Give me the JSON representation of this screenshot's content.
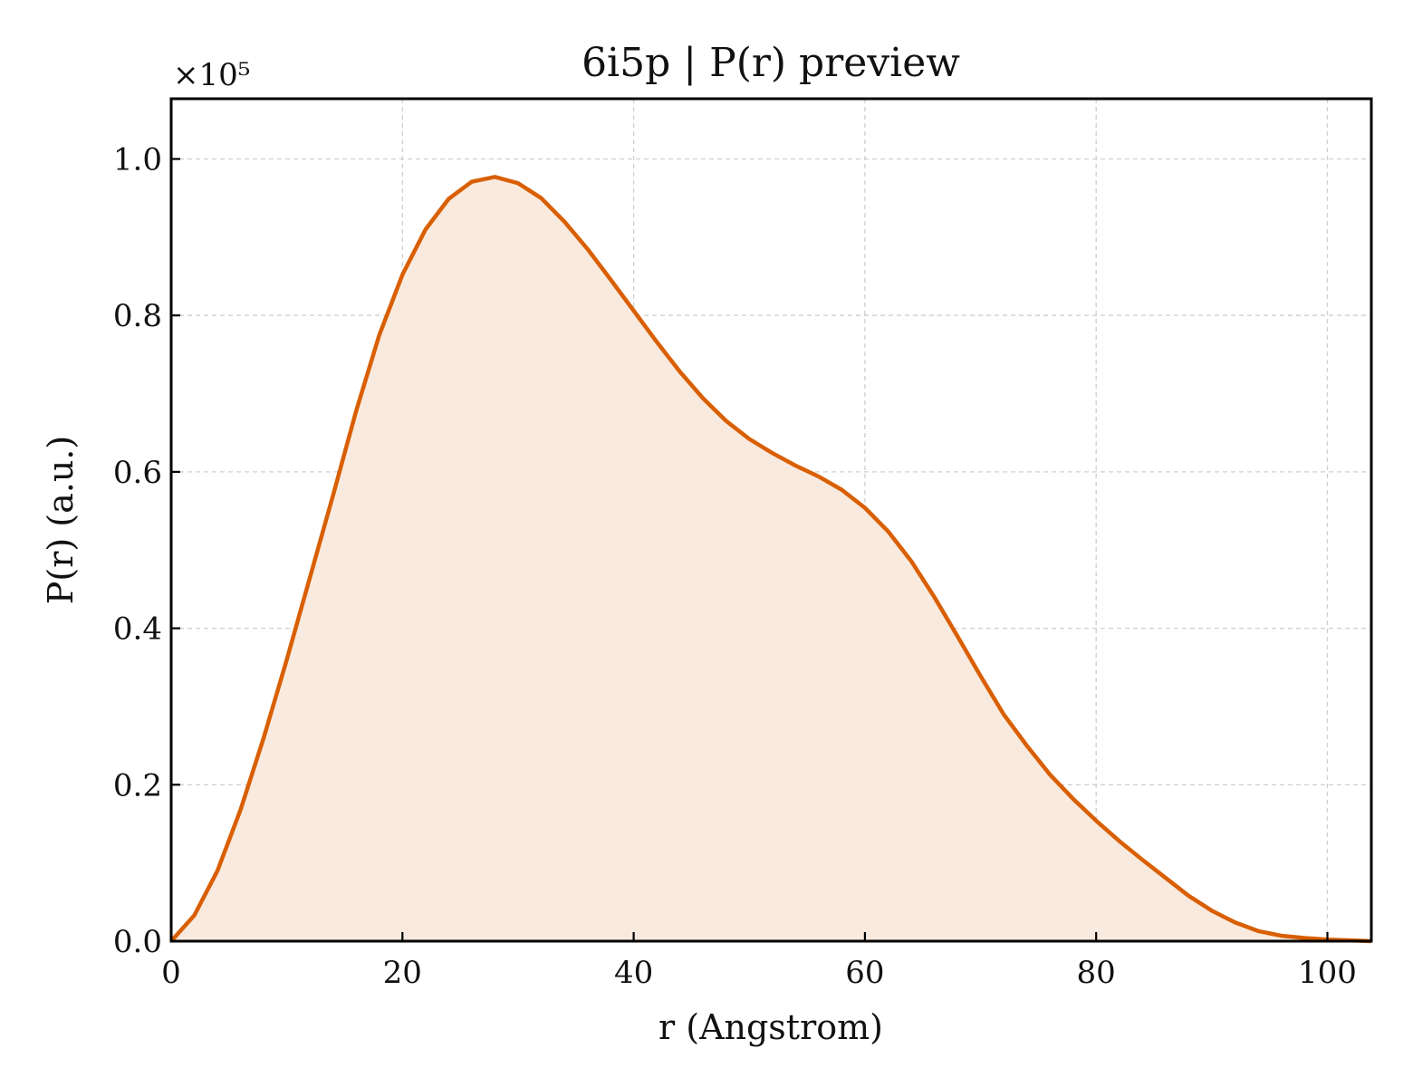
{
  "chart_data": {
    "type": "area",
    "title": "6i5p | P(r) preview",
    "xlabel": "r (Angstrom)",
    "ylabel": "P(r) (a.u.)",
    "y_multiplier": "×10⁵",
    "xlim": [
      0,
      103.8
    ],
    "ylim": [
      0,
      1.077
    ],
    "xticks": [
      0,
      20,
      40,
      60,
      80,
      100
    ],
    "yticks": [
      0.0,
      0.2,
      0.4,
      0.6,
      0.8,
      1.0
    ],
    "ytick_labels": [
      "0.0",
      "0.2",
      "0.4",
      "0.6",
      "0.8",
      "1.0"
    ],
    "grid": true,
    "line_color": "#d95f02",
    "fill_color": "#f9eadf",
    "x": [
      0,
      2,
      4,
      6,
      8,
      10,
      12,
      14,
      16,
      18,
      20,
      22,
      24,
      26,
      28,
      30,
      32,
      34,
      36,
      38,
      40,
      42,
      44,
      46,
      48,
      50,
      52,
      54,
      56,
      58,
      60,
      62,
      64,
      66,
      68,
      70,
      72,
      74,
      76,
      78,
      80,
      82,
      84,
      86,
      88,
      90,
      92,
      94,
      96,
      98,
      100,
      102,
      103.8
    ],
    "y": [
      0.0,
      0.033,
      0.09,
      0.168,
      0.26,
      0.36,
      0.465,
      0.57,
      0.678,
      0.775,
      0.852,
      0.91,
      0.949,
      0.971,
      0.977,
      0.969,
      0.95,
      0.92,
      0.885,
      0.846,
      0.806,
      0.766,
      0.728,
      0.694,
      0.665,
      0.642,
      0.624,
      0.608,
      0.594,
      0.577,
      0.554,
      0.524,
      0.486,
      0.44,
      0.39,
      0.339,
      0.29,
      0.25,
      0.213,
      0.182,
      0.154,
      0.128,
      0.104,
      0.081,
      0.058,
      0.039,
      0.024,
      0.013,
      0.007,
      0.004,
      0.002,
      0.001,
      0.0
    ]
  }
}
